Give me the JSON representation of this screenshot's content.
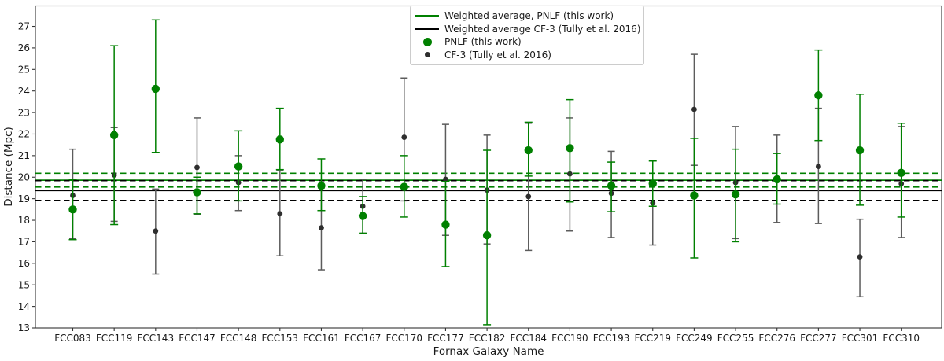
{
  "figure": {
    "background": "#ffffff"
  },
  "chart_data": {
    "type": "scatter",
    "title": "",
    "xlabel": "Fornax Galaxy Name",
    "ylabel": "Distance (Mpc)",
    "ylim": [
      13.0,
      27.95
    ],
    "yticks": [
      13,
      14,
      15,
      16,
      17,
      18,
      19,
      20,
      21,
      22,
      23,
      24,
      25,
      26,
      27
    ],
    "grid": false,
    "legend_position": "upper center inside",
    "categories": [
      "FCC083",
      "FCC119",
      "FCC143",
      "FCC147",
      "FCC148",
      "FCC153",
      "FCC161",
      "FCC167",
      "FCC170",
      "FCC177",
      "FCC182",
      "FCC184",
      "FCC190",
      "FCC193",
      "FCC219",
      "FCC249",
      "FCC255",
      "FCC276",
      "FCC277",
      "FCC301",
      "FCC310"
    ],
    "series": [
      {
        "name": "PNLF (this work)",
        "style": "scatter-errorbar",
        "color": "#008000",
        "marker_diameter": 11,
        "values": [
          18.5,
          21.95,
          24.1,
          19.3,
          20.5,
          21.75,
          19.6,
          18.2,
          19.55,
          17.8,
          17.3,
          21.25,
          21.35,
          19.6,
          19.7,
          19.15,
          19.2,
          19.9,
          23.8,
          21.25,
          20.2
        ],
        "bar_min": [
          17.1,
          17.8,
          21.15,
          18.3,
          18.9,
          20.35,
          18.45,
          17.4,
          18.15,
          15.85,
          13.15,
          20.05,
          18.85,
          18.4,
          18.65,
          16.25,
          17.0,
          18.75,
          21.7,
          18.7,
          18.15
        ],
        "bar_max": [
          19.9,
          26.1,
          27.3,
          20.0,
          22.15,
          23.2,
          20.85,
          19.1,
          21.0,
          19.8,
          21.25,
          22.55,
          23.6,
          20.7,
          20.75,
          21.8,
          21.3,
          21.1,
          25.9,
          23.85,
          22.5
        ]
      },
      {
        "name": "CF-3 (Tully et al. 2016)",
        "style": "scatter-errorbar",
        "color": "#2e2e2e",
        "bar_color": "#5c5c5c",
        "marker_diameter": 7,
        "values": [
          19.15,
          20.1,
          17.5,
          20.45,
          19.75,
          18.3,
          17.65,
          18.65,
          21.85,
          19.9,
          19.4,
          19.1,
          20.15,
          19.25,
          18.8,
          23.15,
          19.75,
          19.9,
          20.5,
          16.3,
          19.7
        ],
        "bar_min": [
          17.15,
          17.95,
          15.5,
          18.25,
          18.45,
          16.35,
          15.7,
          17.4,
          18.9,
          17.3,
          16.9,
          16.6,
          17.5,
          17.2,
          16.85,
          20.55,
          17.15,
          17.9,
          17.85,
          14.45,
          17.2
        ],
        "bar_max": [
          21.3,
          22.3,
          19.45,
          22.75,
          21.0,
          20.3,
          19.5,
          19.9,
          24.6,
          22.45,
          21.95,
          22.5,
          22.75,
          21.2,
          20.75,
          25.7,
          22.35,
          21.95,
          23.2,
          18.05,
          22.35
        ]
      }
    ],
    "average_lines": [
      {
        "label": "Weighted average, PNLF (this work)",
        "value": 19.86,
        "band_low": 19.54,
        "band_high": 20.18,
        "color": "#008000"
      },
      {
        "label": "Weighted average CF-3 (Tully et al. 2016)",
        "value": 19.38,
        "band_low": 18.92,
        "band_high": 19.84,
        "color": "#000000"
      }
    ]
  },
  "legend": {
    "entries": [
      {
        "label": "Weighted average, PNLF (this work)",
        "swatch": "line",
        "color": "#008000"
      },
      {
        "label": "Weighted average CF-3 (Tully et al. 2016)",
        "swatch": "line",
        "color": "#000000"
      },
      {
        "label": "PNLF (this work)",
        "swatch": "dot-large",
        "color": "#008000"
      },
      {
        "label": "CF-3 (Tully et al. 2016)",
        "swatch": "dot-small",
        "color": "#2e2e2e"
      }
    ]
  }
}
